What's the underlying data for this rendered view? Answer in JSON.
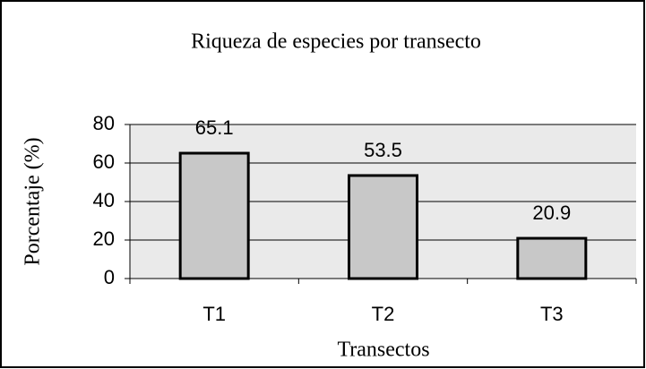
{
  "chart_data": {
    "type": "bar",
    "title": "Riqueza de especies por transecto",
    "xlabel": "Transectos",
    "ylabel": "Porcentaje (%)",
    "categories": [
      "T1",
      "T2",
      "T3"
    ],
    "values": [
      65.1,
      53.5,
      20.9
    ],
    "color": "#c8c8c8",
    "ylim": [
      0,
      80
    ],
    "yticks": [
      0,
      20,
      40,
      60,
      80
    ],
    "grid": true
  }
}
